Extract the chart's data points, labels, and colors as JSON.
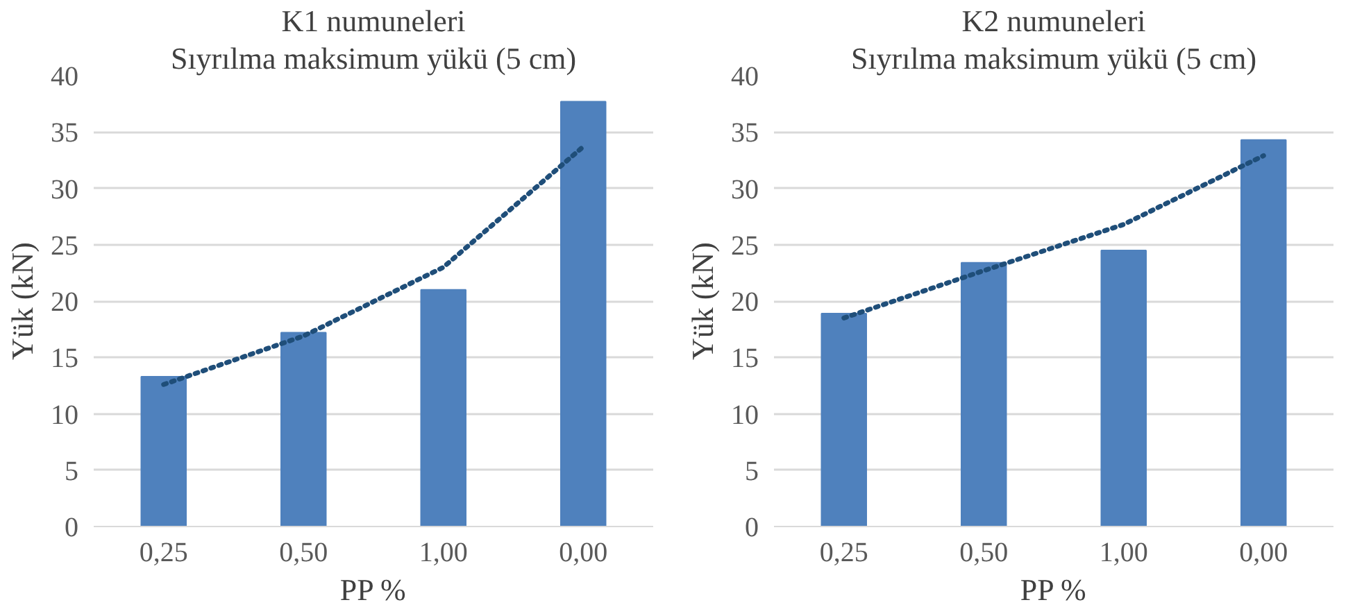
{
  "chart_data": [
    {
      "type": "bar",
      "title": "K1 numuneleri",
      "subtitle": "Sıyrılma maksimum yükü (5 cm)",
      "xlabel": "PP %",
      "ylabel": "Yük (kN)",
      "categories": [
        "0,25",
        "0,50",
        "1,00",
        "0,00"
      ],
      "ylim": [
        0,
        40
      ],
      "yticks": [
        0,
        5,
        10,
        15,
        20,
        25,
        30,
        35,
        40
      ],
      "grid": "y",
      "series": [
        {
          "color": "#4f81bd",
          "values": [
            13.3,
            17.2,
            21.0,
            37.7
          ]
        },
        {
          "type": "line",
          "color": "#1f4e79",
          "line_style": "dotted",
          "values": [
            12.6,
            16.9,
            23.0,
            33.7
          ]
        }
      ]
    },
    {
      "type": "bar",
      "title": "K2 numuneleri",
      "subtitle": "Sıyrılma maksimum yükü (5 cm)",
      "xlabel": "PP %",
      "ylabel": "Yük (kN)",
      "categories": [
        "0,25",
        "0,50",
        "1,00",
        "0,00"
      ],
      "ylim": [
        0,
        40
      ],
      "yticks": [
        0,
        5,
        10,
        15,
        20,
        25,
        30,
        35,
        40
      ],
      "grid": "y",
      "series": [
        {
          "color": "#4f81bd",
          "values": [
            18.9,
            23.4,
            24.5,
            34.3
          ]
        },
        {
          "type": "line",
          "color": "#1f4e79",
          "line_style": "dotted",
          "values": [
            18.5,
            22.7,
            26.8,
            32.9
          ]
        }
      ]
    }
  ]
}
